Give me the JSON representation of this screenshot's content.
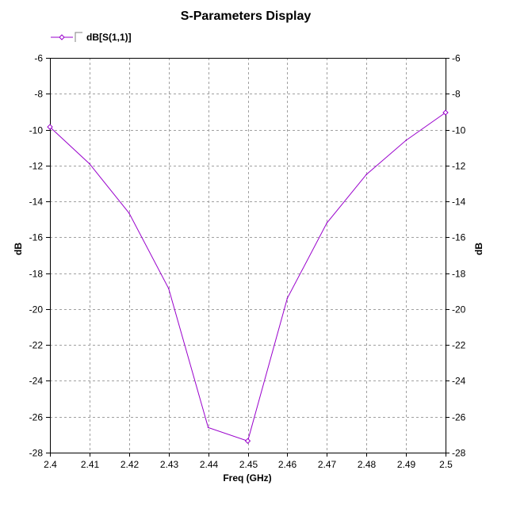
{
  "chart_data": {
    "type": "line",
    "title": "S-Parameters Display",
    "xlabel": "Freq (GHz)",
    "ylabel": "dB",
    "ylabel_right": "dB",
    "xlim": [
      2.4,
      2.5
    ],
    "ylim": [
      -28,
      -6
    ],
    "x_ticks": [
      2.4,
      2.41,
      2.42,
      2.43,
      2.44,
      2.45,
      2.46,
      2.47,
      2.48,
      2.49,
      2.5
    ],
    "x_tick_labels": [
      "2.4",
      "2.41",
      "2.42",
      "2.43",
      "2.44",
      "2.45",
      "2.46",
      "2.47",
      "2.48",
      "2.49",
      "2.5"
    ],
    "y_ticks": [
      -6,
      -8,
      -10,
      -12,
      -14,
      -16,
      -18,
      -20,
      -22,
      -24,
      -26,
      -28
    ],
    "y_tick_labels": [
      "-6",
      "-8",
      "-10",
      "-12",
      "-14",
      "-16",
      "-18",
      "-20",
      "-22",
      "-24",
      "-26",
      "-28"
    ],
    "grid": true,
    "legend_position": "top-left",
    "series": [
      {
        "name": "dB[S(1,1)]",
        "color": "#9900cc",
        "marker": "diamond",
        "x": [
          2.4,
          2.41,
          2.42,
          2.43,
          2.44,
          2.45,
          2.46,
          2.47,
          2.48,
          2.49,
          2.5
        ],
        "y": [
          -9.85,
          -11.9,
          -14.65,
          -18.85,
          -26.6,
          -27.35,
          -19.4,
          -15.2,
          -12.5,
          -10.6,
          -9.05
        ],
        "marker_indices": [
          0,
          5,
          10
        ]
      }
    ]
  }
}
